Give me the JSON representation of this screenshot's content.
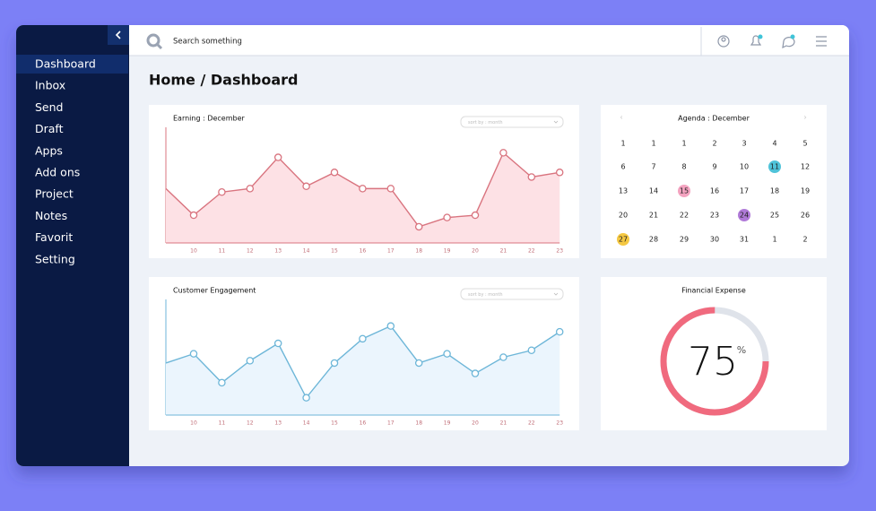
{
  "sidebar": {
    "items": [
      "Dashboard",
      "Inbox",
      "Send",
      "Draft",
      "Apps",
      "Add ons",
      "Project",
      "Notes",
      "Favorit",
      "Setting"
    ]
  },
  "search": {
    "placeholder": "Search something"
  },
  "heading": "Home / Dashboard",
  "chart_data": [
    {
      "type": "line",
      "title": "Earning : December",
      "control_label": "sort by : month",
      "categories": [
        null,
        "10",
        "11",
        "12",
        "13",
        "14",
        "15",
        "16",
        "17",
        "18",
        "19",
        "20",
        "21",
        "22",
        "23"
      ],
      "values": [
        47,
        24,
        44,
        47,
        74,
        49,
        61,
        47,
        47,
        14,
        22,
        24,
        78,
        57,
        61
      ],
      "color": "#d9747f",
      "fill": "#fde1e5",
      "ylim": [
        0,
        100
      ]
    },
    {
      "type": "line",
      "title": "Customer Engagement",
      "control_label": "sort by : month",
      "categories": [
        null,
        "10",
        "11",
        "12",
        "13",
        "14",
        "15",
        "16",
        "17",
        "18",
        "19",
        "20",
        "21",
        "22",
        "23"
      ],
      "values": [
        45,
        53,
        28,
        47,
        62,
        15,
        45,
        66,
        77,
        45,
        53,
        36,
        50,
        56,
        72
      ],
      "color": "#6db6d8",
      "fill": "#ebf5fd",
      "ylim": [
        0,
        100
      ]
    },
    {
      "type": "donut",
      "title": "Financial Expense",
      "value": 75,
      "unit": "%",
      "color": "#f06a7e",
      "track_color": "#dfe3ea",
      "ylim": [
        0,
        100
      ]
    }
  ],
  "calendar": {
    "title": "Agenda : December",
    "rows": [
      [
        "1",
        "1",
        "1",
        "2",
        "3",
        "4",
        "5"
      ],
      [
        "6",
        "7",
        "8",
        "9",
        "10",
        "11",
        "12"
      ],
      [
        "13",
        "14",
        "15",
        "16",
        "17",
        "18",
        "19"
      ],
      [
        "20",
        "21",
        "22",
        "23",
        "24",
        "25",
        "26"
      ],
      [
        "27",
        "28",
        "29",
        "30",
        "31",
        "1",
        "2"
      ]
    ]
  }
}
